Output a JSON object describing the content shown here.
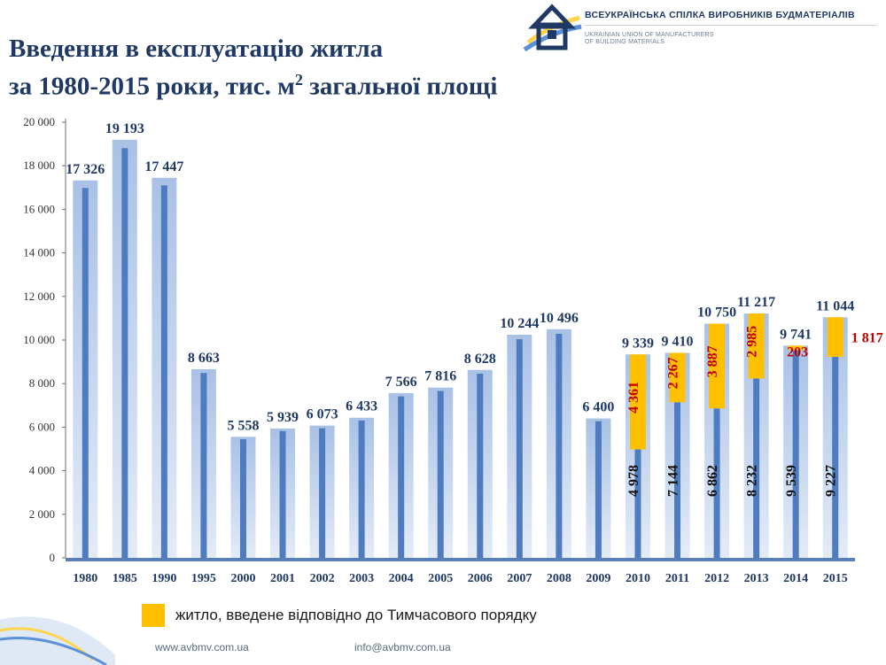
{
  "header": {
    "title_line1": "Введення в експлуатацію житла",
    "title_line2_a": "за 1980-2015 роки, тис. м",
    "title_sup": "2",
    "title_line2_b": " загальної площі",
    "org_name_ua": "ВСЕУКРАЇНСЬКА СПІЛКА ВИРОБНИКІВ БУДМАТЕРІАЛІВ",
    "org_name_en_1": "UKRAINIAN UNION OF MANUFACTURERS",
    "org_name_en_2": "OF BUILDING MATERIALS",
    "logo_icon": "house-logo-icon"
  },
  "footer": {
    "website": "www.avbmv.com.ua",
    "email": "info@avbmv.com.ua"
  },
  "colors": {
    "title": "#1f3864",
    "bar_light": "#b4c7e7",
    "bar_dark": "#4f7cc0",
    "highlight": "#ffc000",
    "label_blue": "#1f3864",
    "label_red": "#c00000",
    "axis": "#6f6f6f"
  },
  "chart_data": {
    "type": "bar",
    "categories": [
      "1980",
      "1985",
      "1990",
      "1995",
      "2000",
      "2001",
      "2002",
      "2003",
      "2004",
      "2005",
      "2006",
      "2007",
      "2008",
      "2009",
      "2010",
      "2011",
      "2012",
      "2013",
      "2014",
      "2015"
    ],
    "series": [
      {
        "values": [
          17326,
          19193,
          17447,
          8663,
          5558,
          5939,
          6073,
          6433,
          7566,
          7816,
          8628,
          10244,
          10496,
          6400,
          9339,
          9410,
          10750,
          11217,
          9741,
          11044
        ],
        "labels": [
          "17 326",
          "19 193",
          "17 447",
          "8 663",
          "5 558",
          "5 939",
          "6 073",
          "6 433",
          "7 566",
          "7 816",
          "8 628",
          "10 244",
          "10 496",
          "6 400",
          "9 339",
          "9 410",
          "10 750",
          "11 217",
          "9 741",
          "11 044"
        ]
      },
      {
        "values": [
          null,
          null,
          null,
          null,
          null,
          null,
          null,
          null,
          null,
          null,
          null,
          null,
          null,
          null,
          4978,
          7144,
          6862,
          8232,
          9539,
          9227
        ],
        "labels": [
          "",
          "",
          "",
          "",
          "",
          "",
          "",
          "",
          "",
          "",
          "",
          "",
          "",
          "",
          "4 978",
          "7 144",
          "6 862",
          "8 232",
          "9 539",
          "9 227"
        ]
      },
      {
        "name": "житло, введене відповідно до Тимчасового порядку",
        "values": [
          null,
          null,
          null,
          null,
          null,
          null,
          null,
          null,
          null,
          null,
          null,
          null,
          null,
          null,
          4361,
          2267,
          3887,
          2985,
          203,
          1817
        ],
        "labels": [
          "",
          "",
          "",
          "",
          "",
          "",
          "",
          "",
          "",
          "",
          "",
          "",
          "",
          "",
          "4 361",
          "2 267",
          "3 887",
          "2 985",
          "203",
          "1 817"
        ]
      }
    ],
    "ylim": [
      0,
      20000
    ],
    "yticks": [
      0,
      2000,
      4000,
      6000,
      8000,
      10000,
      12000,
      14000,
      16000,
      18000,
      20000
    ],
    "ytick_labels": [
      "0",
      "2 000",
      "4 000",
      "6 000",
      "8 000",
      "10 000",
      "12 000",
      "14 000",
      "16 000",
      "18 000",
      "20 000"
    ],
    "grid": false,
    "legend": {
      "position": "bottom-left",
      "label": "житло, введене відповідно до Тимчасового порядку"
    }
  }
}
